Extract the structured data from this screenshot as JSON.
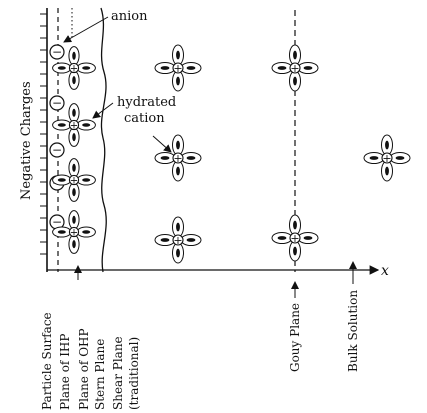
{
  "labels": {
    "anion": "anion",
    "hydrated_cation_line1": "hydrated",
    "hydrated_cation_line2": "cation",
    "negative_charges": "Negative Charges",
    "x_axis": "x",
    "minus_sign": "−",
    "plus_sign": "+"
  },
  "planes": [
    {
      "id": "particle-surface",
      "label": "Particle Surface"
    },
    {
      "id": "plane-of-ihp",
      "label": "Plane of IHP"
    },
    {
      "id": "plane-of-ohp",
      "label": "Plane of OHP"
    },
    {
      "id": "stern-plane",
      "label": "Stern Plane"
    },
    {
      "id": "shear-plane",
      "label": "Shear Plane",
      "sub": "(traditional)"
    },
    {
      "id": "gouy-plane",
      "label": "Gouy Plane"
    },
    {
      "id": "bulk-solution",
      "label": "Bulk Solution"
    }
  ]
}
